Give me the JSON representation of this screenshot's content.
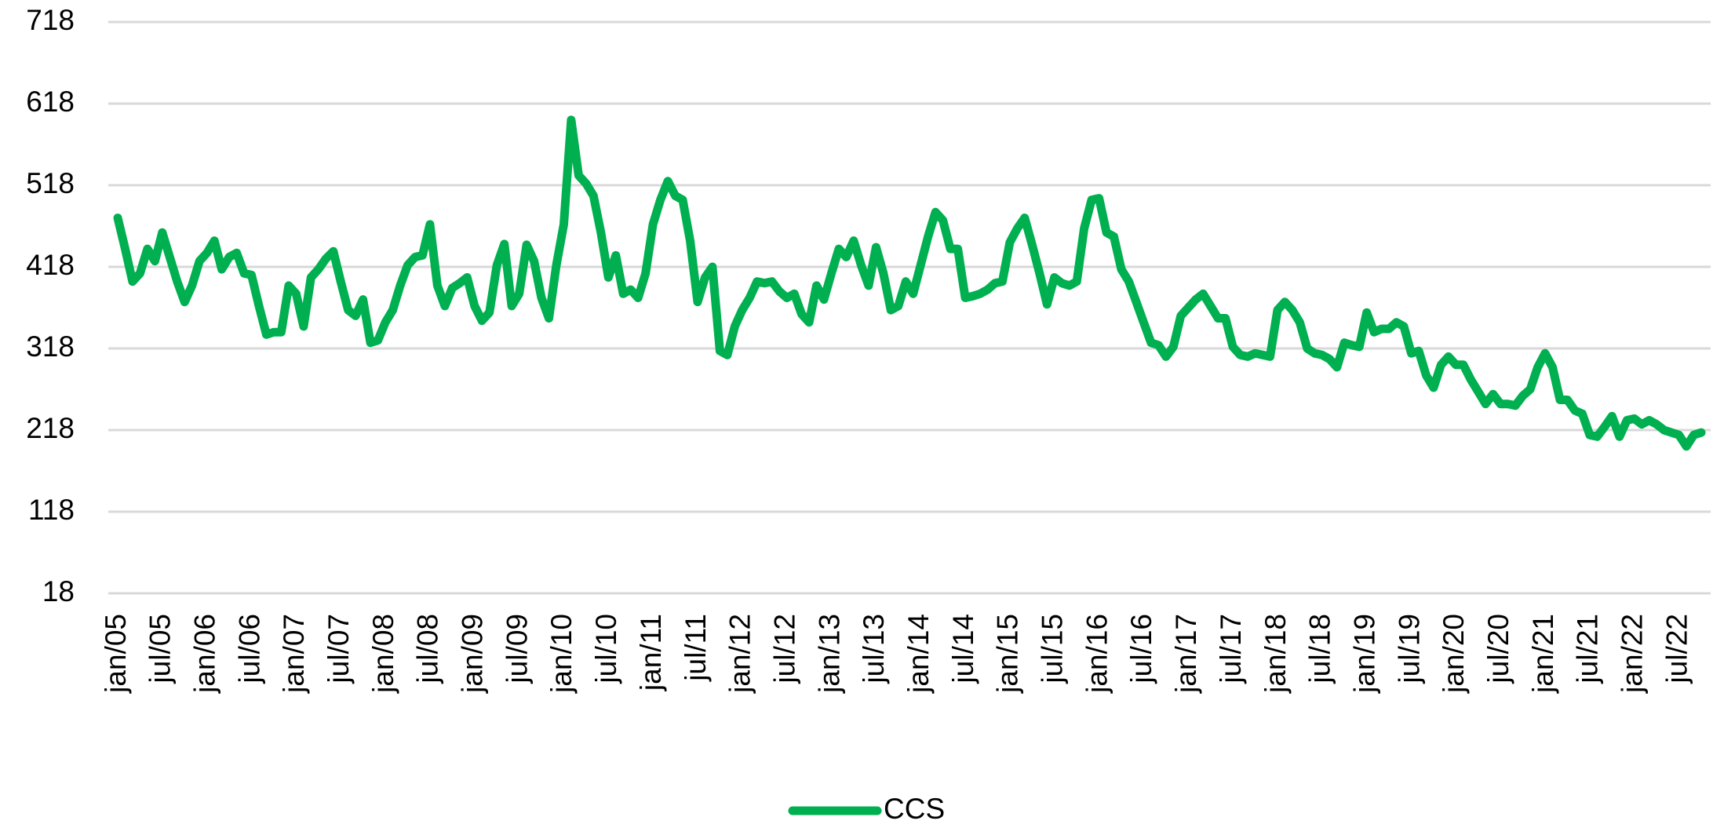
{
  "chart_data": {
    "type": "line",
    "categories": [
      "jan/05",
      null,
      null,
      null,
      null,
      null,
      "jul/05",
      null,
      null,
      null,
      null,
      null,
      "jan/06",
      null,
      null,
      null,
      null,
      null,
      "jul/06",
      null,
      null,
      null,
      null,
      null,
      "jan/07",
      null,
      null,
      null,
      null,
      null,
      "jul/07",
      null,
      null,
      null,
      null,
      null,
      "jan/08",
      null,
      null,
      null,
      null,
      null,
      "jul/08",
      null,
      null,
      null,
      null,
      null,
      "jan/09",
      null,
      null,
      null,
      null,
      null,
      "jul/09",
      null,
      null,
      null,
      null,
      null,
      "jan/10",
      null,
      null,
      null,
      null,
      null,
      "jul/10",
      null,
      null,
      null,
      null,
      null,
      "jan/11",
      null,
      null,
      null,
      null,
      null,
      "jul/11",
      null,
      null,
      null,
      null,
      null,
      "jan/12",
      null,
      null,
      null,
      null,
      null,
      "jul/12",
      null,
      null,
      null,
      null,
      null,
      "jan/13",
      null,
      null,
      null,
      null,
      null,
      "jul/13",
      null,
      null,
      null,
      null,
      null,
      "jan/14",
      null,
      null,
      null,
      null,
      null,
      "jul/14",
      null,
      null,
      null,
      null,
      null,
      "jan/15",
      null,
      null,
      null,
      null,
      null,
      "jul/15",
      null,
      null,
      null,
      null,
      null,
      "jan/16",
      null,
      null,
      null,
      null,
      null,
      "jul/16",
      null,
      null,
      null,
      null,
      null,
      "jan/17",
      null,
      null,
      null,
      null,
      null,
      "jul/17",
      null,
      null,
      null,
      null,
      null,
      "jan/18",
      null,
      null,
      null,
      null,
      null,
      "jul/18",
      null,
      null,
      null,
      null,
      null,
      "jan/19",
      null,
      null,
      null,
      null,
      null,
      "jul/19",
      null,
      null,
      null,
      null,
      null,
      "jan/20",
      null,
      null,
      null,
      null,
      null,
      "jul/20",
      null,
      null,
      null,
      null,
      null,
      "jan/21",
      null,
      null,
      null,
      null,
      null,
      "jul/21",
      null,
      null,
      null,
      null,
      null,
      "jan/22",
      null,
      null,
      null,
      null,
      null,
      "jul/22",
      null,
      null,
      null
    ],
    "series": [
      {
        "name": "CCS",
        "color": "#00b050",
        "values": [
          478,
          440,
          400,
          410,
          440,
          425,
          460,
          430,
          400,
          375,
          395,
          425,
          435,
          450,
          415,
          430,
          435,
          410,
          408,
          370,
          335,
          338,
          338,
          395,
          385,
          345,
          405,
          415,
          428,
          437,
          400,
          365,
          358,
          378,
          325,
          328,
          350,
          365,
          395,
          420,
          430,
          432,
          470,
          395,
          370,
          392,
          398,
          405,
          370,
          352,
          362,
          420,
          446,
          370,
          385,
          445,
          425,
          380,
          355,
          420,
          470,
          598,
          530,
          520,
          505,
          460,
          405,
          432,
          385,
          390,
          380,
          410,
          470,
          500,
          523,
          505,
          500,
          450,
          375,
          405,
          418,
          315,
          310,
          345,
          365,
          380,
          400,
          398,
          400,
          388,
          380,
          385,
          360,
          350,
          395,
          378,
          410,
          440,
          430,
          450,
          420,
          395,
          442,
          410,
          365,
          370,
          400,
          385,
          420,
          455,
          485,
          475,
          440,
          440,
          380,
          382,
          385,
          390,
          398,
          400,
          448,
          465,
          478,
          445,
          410,
          372,
          405,
          398,
          395,
          400,
          465,
          500,
          502,
          460,
          455,
          415,
          400,
          375,
          350,
          325,
          322,
          308,
          320,
          358,
          368,
          378,
          385,
          370,
          355,
          355,
          320,
          310,
          308,
          312,
          310,
          308,
          365,
          375,
          365,
          350,
          318,
          312,
          310,
          305,
          295,
          325,
          322,
          320,
          362,
          338,
          342,
          342,
          350,
          345,
          312,
          315,
          285,
          270,
          298,
          308,
          298,
          298,
          280,
          265,
          250,
          262,
          250,
          250,
          248,
          260,
          268,
          295,
          312,
          295,
          255,
          255,
          242,
          238,
          212,
          210,
          222,
          235,
          210,
          230,
          232,
          225,
          230,
          225,
          218,
          215,
          212,
          198,
          212,
          215
        ]
      }
    ],
    "ylim": [
      18,
      718
    ],
    "yticks": [
      18,
      118,
      218,
      318,
      418,
      518,
      618,
      718
    ],
    "grid": true,
    "legend": "bottom"
  }
}
